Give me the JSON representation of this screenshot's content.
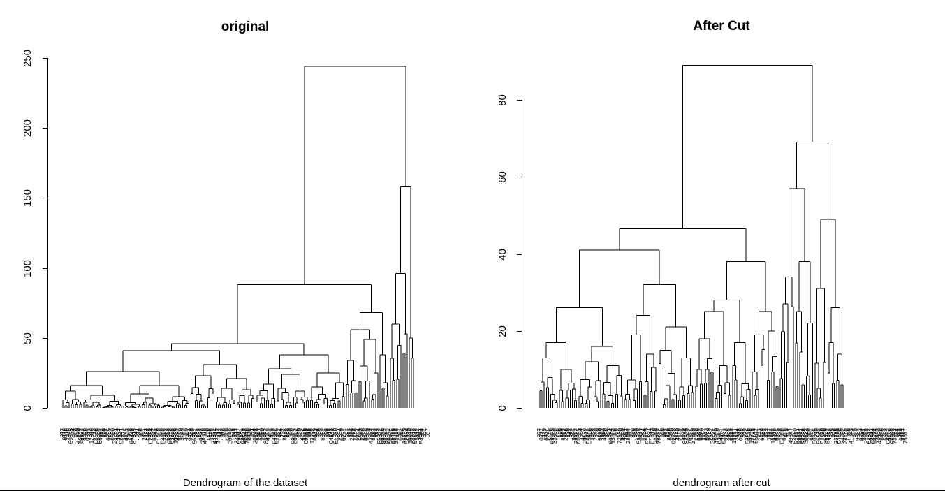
{
  "chart_data": [
    {
      "type": "dendrogram",
      "title": "original",
      "xlabel": "Dendrogram of the dataset",
      "ylabel": "",
      "ylim": [
        0,
        250
      ],
      "yticks": [
        0,
        50,
        100,
        150,
        200,
        250
      ],
      "top_merges": [
        {
          "height": 244,
          "joins": "main cluster + right cluster"
        },
        {
          "height": 158,
          "joins": "rightmost branch"
        },
        {
          "height": 96,
          "joins": "rightmost sub-branch"
        },
        {
          "height": 88,
          "joins": "left group + middle-right group"
        },
        {
          "height": 68,
          "joins": "right subgroup"
        },
        {
          "height": 56,
          "joins": "right subgroup"
        },
        {
          "height": 46,
          "joins": "left group + middle group"
        },
        {
          "height": 41,
          "joins": "far-left groups"
        },
        {
          "height": 38,
          "joins": "middle group"
        },
        {
          "height": 31,
          "joins": "middle-left group"
        },
        {
          "height": 26,
          "joins": "far-left groups"
        },
        {
          "height": 16,
          "joins": "far-left subgroup"
        }
      ],
      "grid": false,
      "legend": "none"
    },
    {
      "type": "dendrogram",
      "title": "After Cut",
      "xlabel": "dendrogram after cut",
      "ylabel": "",
      "ylim": [
        0,
        80
      ],
      "yticks": [
        0,
        20,
        40,
        60,
        80
      ],
      "top_merges": [
        {
          "height": 89,
          "joins": "main cluster + right cluster"
        },
        {
          "height": 69,
          "joins": "right cluster"
        },
        {
          "height": 57,
          "joins": "right subgroup"
        },
        {
          "height": 49,
          "joins": "right subgroup"
        },
        {
          "height": 46.5,
          "joins": "left group + middle-right group"
        },
        {
          "height": 41,
          "joins": "left group + middle group"
        },
        {
          "height": 38,
          "joins": "middle-right group"
        },
        {
          "height": 32,
          "joins": "middle group"
        },
        {
          "height": 28,
          "joins": "middle-right group"
        },
        {
          "height": 26,
          "joins": "far-left groups"
        },
        {
          "height": 25,
          "joins": "middle-right subgroup"
        },
        {
          "height": 21,
          "joins": "middle subgroup"
        },
        {
          "height": 17,
          "joins": "left subgroup"
        },
        {
          "height": 16,
          "joins": "left subgroup"
        }
      ],
      "grid": false,
      "legend": "none"
    }
  ]
}
